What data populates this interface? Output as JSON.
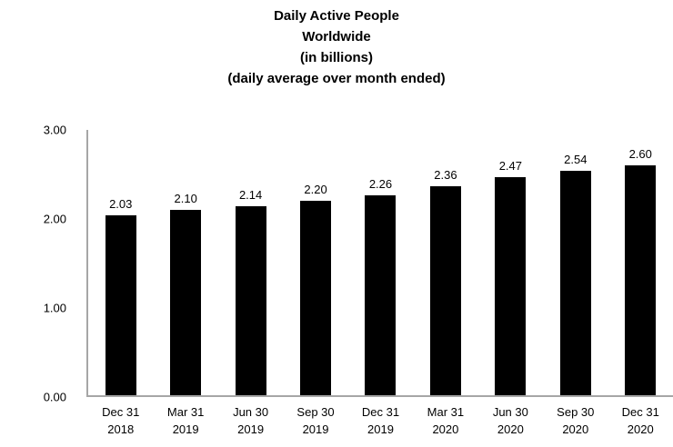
{
  "chart_data": {
    "type": "bar",
    "title_lines": [
      "Daily Active People",
      "Worldwide",
      "(in billions)",
      "(daily average over month ended)"
    ],
    "categories": [
      "Dec 31 2018",
      "Mar 31 2019",
      "Jun 30 2019",
      "Sep 30 2019",
      "Dec 31 2019",
      "Mar 31 2020",
      "Jun 30 2020",
      "Sep 30 2020",
      "Dec 31 2020"
    ],
    "values": [
      2.03,
      2.1,
      2.14,
      2.2,
      2.26,
      2.36,
      2.47,
      2.54,
      2.6
    ],
    "value_labels": [
      "2.03",
      "2.10",
      "2.14",
      "2.20",
      "2.26",
      "2.36",
      "2.47",
      "2.54",
      "2.60"
    ],
    "y_ticks": [
      "3.00",
      "2.00",
      "1.00",
      "0.00"
    ],
    "ylim": [
      0,
      3
    ],
    "xlabel": "",
    "ylabel": "",
    "bar_color": "#000000",
    "axis_color": "#a6a6a6",
    "background": "#ffffff",
    "grid": "off",
    "legend": "none"
  }
}
